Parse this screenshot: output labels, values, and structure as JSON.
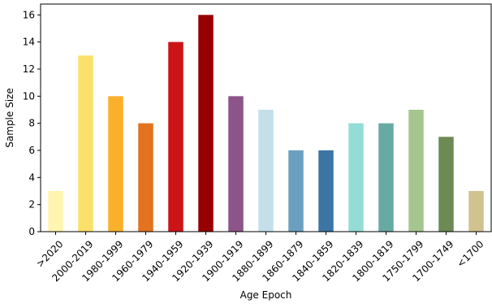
{
  "chart_data": {
    "type": "bar",
    "title": "",
    "xlabel": "Age Epoch",
    "ylabel": "Sample Size",
    "ylim": [
      0,
      16.8
    ],
    "yticks": [
      0,
      2,
      4,
      6,
      8,
      10,
      12,
      14,
      16
    ],
    "grid": false,
    "categories": [
      ">2020",
      "2000-2019",
      "1980-1999",
      "1960-1979",
      "1940-1959",
      "1920-1939",
      "1900-1919",
      "1880-1899",
      "1860-1879",
      "1840-1859",
      "1820-1839",
      "1800-1819",
      "1750-1799",
      "1700-1749",
      "<1700"
    ],
    "values": [
      3,
      13,
      10,
      8,
      14,
      16,
      10,
      9,
      6,
      6,
      8,
      8,
      9,
      7,
      3
    ],
    "colors": [
      "#fff5b0",
      "#fbe06a",
      "#fbb02b",
      "#e3731e",
      "#cc1417",
      "#960000",
      "#8c5489",
      "#c3e0ea",
      "#6a9fc0",
      "#3b75a5",
      "#94ddd6",
      "#67aaa3",
      "#a6c68f",
      "#6b8a54",
      "#d0c38f"
    ]
  }
}
